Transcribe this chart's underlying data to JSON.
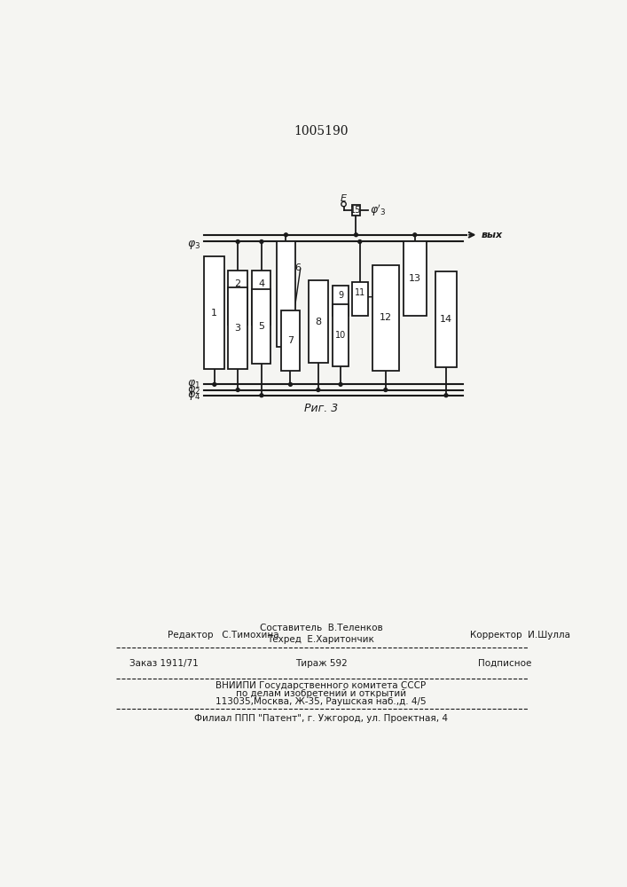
{
  "patent_number": "1005190",
  "bg_color": "#f5f5f2",
  "line_color": "#1a1a1a",
  "fig_caption": "Риг. 3",
  "footer_editor": "Редактор   С.Тимохина",
  "footer_composer": "Составитель  В.Теленков",
  "footer_techred": "Техред  Е.Харитончик",
  "footer_corrector": "Корректор  И.Шулла",
  "footer_zakaz": "Заказ 1911/71",
  "footer_tirazh": "Тираж 592",
  "footer_podpisnoe": "Подписное",
  "footer_vniipи": "ВНИИПИ Государственного комитета СССР",
  "footer_podel": "по делам изобретений и открытий",
  "footer_addr": "113035,Москва, Ж-35, Раушская наб.,д. 4/5",
  "footer_filial": "Филиал ППП \"Патент\", г. Ужгород, ул. Проектная, 4"
}
